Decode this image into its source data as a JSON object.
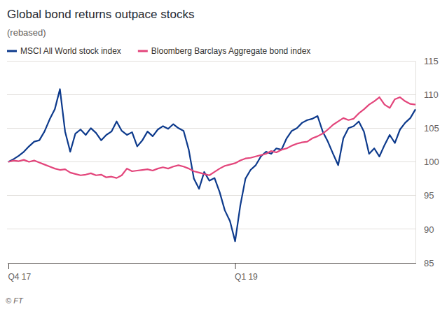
{
  "chart_data": {
    "type": "line",
    "title": "Global bond returns outpace stocks",
    "subtitle": "(rebased)",
    "source": "© FT",
    "categories": [
      "Q4 17",
      null,
      null,
      null,
      null,
      null,
      null,
      null,
      null,
      null,
      null,
      null,
      null,
      null,
      null,
      null,
      null,
      null,
      null,
      null,
      null,
      null,
      null,
      null,
      null,
      null,
      null,
      null,
      null,
      null,
      null,
      null,
      null,
      null,
      null,
      null,
      null,
      null,
      null,
      null,
      null,
      null,
      null,
      null,
      "Q1 19",
      null,
      null,
      null,
      null,
      null,
      null,
      null,
      null,
      null,
      null,
      null,
      null,
      null,
      null,
      null,
      null,
      null,
      null,
      null,
      null,
      null,
      null,
      null,
      null,
      null,
      null,
      null,
      null,
      null,
      null,
      null,
      null,
      null,
      null,
      null
    ],
    "series": [
      {
        "name": "MSCI All World stock index",
        "color": "#0d3a8c",
        "values": [
          100,
          100.4,
          100.9,
          101.5,
          102.3,
          103.0,
          103.2,
          104.5,
          106.3,
          107.8,
          110.8,
          104.5,
          101.5,
          104.2,
          104.8,
          104.0,
          105.0,
          104.3,
          103.2,
          104.0,
          104.5,
          106.0,
          104.6,
          104.0,
          104.4,
          102.3,
          103.2,
          104.5,
          103.8,
          104.8,
          105.3,
          104.9,
          105.6,
          105.0,
          104.6,
          101.8,
          97.5,
          96.0,
          98.5,
          97.2,
          97.6,
          95.5,
          92.8,
          91.2,
          88.2,
          93.5,
          97.5,
          98.8,
          99.5,
          100.8,
          101.5,
          101.2,
          102.0,
          101.8,
          103.5,
          104.6,
          105.0,
          105.8,
          106.2,
          106.4,
          106.8,
          104.5,
          103.0,
          101.2,
          99.5,
          103.5,
          105.0,
          105.3,
          106.0,
          104.5,
          101.2,
          102.0,
          100.8,
          102.5,
          104.0,
          102.8,
          104.8,
          105.8,
          106.5,
          107.8
        ]
      },
      {
        "name": "Bloomberg Barclays Aggregate bond index",
        "color": "#e3457b",
        "values": [
          100,
          100.2,
          100.1,
          100.3,
          100.0,
          100.2,
          99.9,
          99.6,
          99.3,
          99.0,
          98.8,
          98.9,
          98.4,
          98.2,
          98.0,
          98.1,
          98.3,
          98.0,
          98.1,
          97.7,
          97.8,
          97.6,
          98.0,
          99.0,
          98.6,
          98.7,
          98.8,
          98.9,
          98.7,
          99.0,
          99.2,
          99.0,
          99.3,
          99.5,
          99.3,
          99.0,
          98.6,
          98.4,
          98.2,
          98.0,
          98.5,
          99.0,
          99.4,
          99.6,
          99.8,
          100.2,
          100.5,
          100.6,
          100.8,
          101.0,
          101.2,
          101.6,
          101.4,
          101.8,
          102.0,
          102.4,
          102.7,
          102.9,
          103.0,
          103.5,
          103.8,
          104.2,
          104.8,
          105.5,
          106.0,
          106.5,
          106.2,
          106.4,
          107.2,
          107.8,
          108.5,
          109.0,
          109.6,
          108.5,
          108.0,
          109.3,
          109.6,
          109.0,
          108.6,
          108.5
        ]
      }
    ],
    "ylim": [
      85,
      115
    ],
    "yticks": [
      85,
      90,
      95,
      100,
      105,
      110,
      115
    ],
    "grid": true,
    "legend": "top"
  }
}
